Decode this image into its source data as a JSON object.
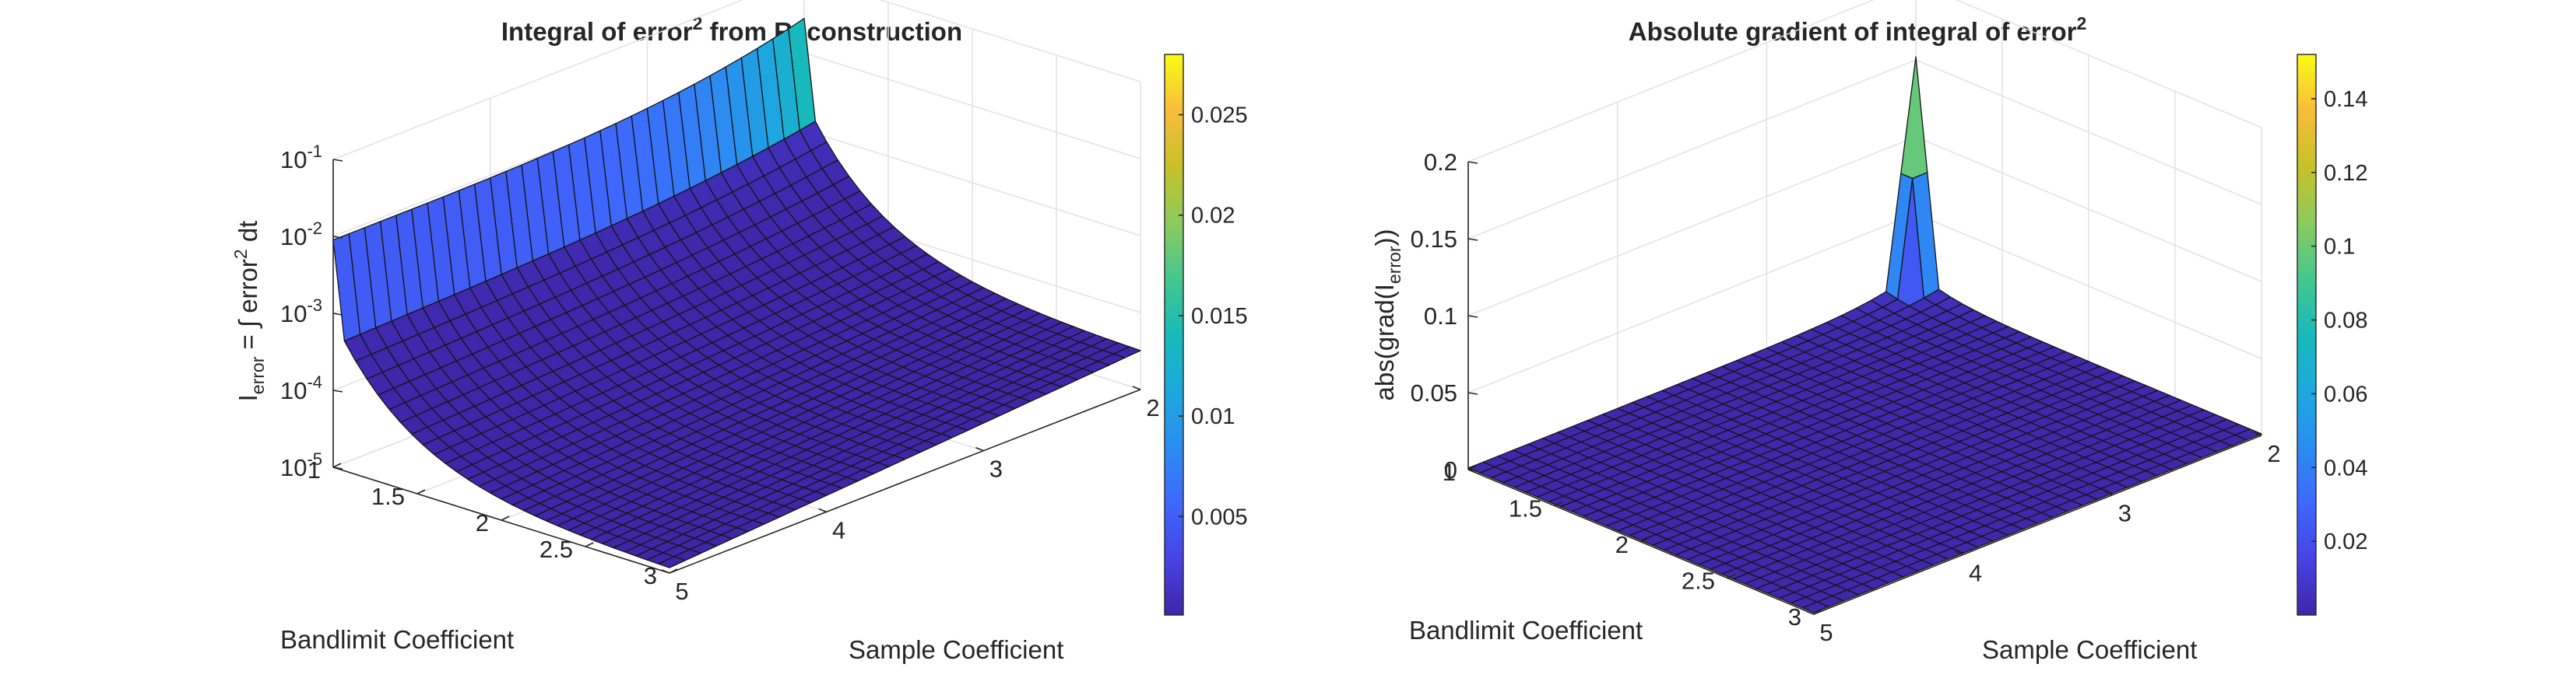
{
  "figure": {
    "colorbar_colormap": [
      "#3e26a8",
      "#4743e5",
      "#3e68fd",
      "#2b8df1",
      "#1ca9dd",
      "#17baba",
      "#45c78e",
      "#8ccb5e",
      "#c8c128",
      "#f7bd3a",
      "#f9fb14"
    ]
  },
  "chart_data": [
    {
      "type": "surface",
      "title": "Integral of error",
      "title_superscript": "2",
      "title_suffix": " from Reconstruction",
      "xlabel": "Sample Coefficient",
      "ylabel": "Bandlimit Coefficient",
      "zlabel": {
        "base": "I",
        "subscript": "error",
        "mid": " = ∫ error",
        "superscript": "2",
        "end": " dt"
      },
      "x_range": [
        2,
        5
      ],
      "y_range": [
        1,
        3
      ],
      "x_ticks": [
        "2",
        "3",
        "4",
        "5"
      ],
      "y_ticks": [
        "1",
        "1.5",
        "2",
        "2.5",
        "3"
      ],
      "z_scale": "log",
      "z_ticks": [
        {
          "base": "10",
          "exp": "-5"
        },
        {
          "base": "10",
          "exp": "-4"
        },
        {
          "base": "10",
          "exp": "-3"
        },
        {
          "base": "10",
          "exp": "-2"
        },
        {
          "base": "10",
          "exp": "-1"
        }
      ],
      "z_range": [
        1e-05,
        0.1
      ],
      "surface_shape": "Decreasing with Bandlimit Coefficient; row at Bandlimit Coefficient 1 near 0.01 rising to about 0.028 at Sample Coefficient 2",
      "corner_values": {
        "bandlimit_1_sample_5": 0.009,
        "bandlimit_1_sample_2": 0.028,
        "bandlimit_3_sample_5": 1.1e-05,
        "bandlimit_3_sample_2": 3e-05
      },
      "grid": true,
      "colorbar": {
        "ticks": [
          "0.005",
          "0.01",
          "0.015",
          "0.02",
          "0.025"
        ],
        "range": [
          0.0001,
          0.028
        ]
      }
    },
    {
      "type": "surface",
      "title": "Absolute gradient of integral of error",
      "title_superscript": "2",
      "xlabel": "Sample Coefficient",
      "ylabel": "Bandlimit Coefficient",
      "zlabel": {
        "base": "abs(grad(I",
        "subscript": "error",
        "end": "))"
      },
      "x_range": [
        2,
        5
      ],
      "y_range": [
        1,
        3
      ],
      "x_ticks": [
        "2",
        "3",
        "4",
        "5"
      ],
      "y_ticks": [
        "1",
        "1.5",
        "2",
        "2.5",
        "3"
      ],
      "z_scale": "linear",
      "z_ticks": [
        "0",
        "0.05",
        "0.1",
        "0.15",
        "0.2"
      ],
      "z_range": [
        0,
        0.2
      ],
      "surface_shape": "Flat near 0 with a sharp spike at Bandlimit Coefficient 1, Sample Coefficient 2",
      "peak_value": 0.152,
      "peak_location": {
        "sample": 2,
        "bandlimit": 1
      },
      "grid": true,
      "colorbar": {
        "ticks": [
          "0.02",
          "0.04",
          "0.06",
          "0.08",
          "0.1",
          "0.12",
          "0.14"
        ],
        "range": [
          0,
          0.152
        ]
      }
    }
  ]
}
